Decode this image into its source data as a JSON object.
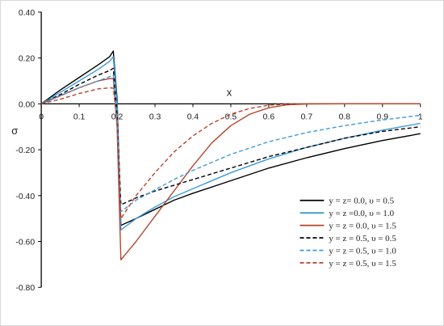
{
  "chart_data": {
    "type": "line",
    "xlabel": "x",
    "ylabel": "σ",
    "xlim": [
      0,
      1
    ],
    "ylim": [
      -0.8,
      0.4
    ],
    "x_ticks": [
      {
        "v": 0,
        "label": "0"
      },
      {
        "v": 0.1,
        "label": "0.1"
      },
      {
        "v": 0.2,
        "label": "0.2"
      },
      {
        "v": 0.3,
        "label": "0.3"
      },
      {
        "v": 0.4,
        "label": "0.4"
      },
      {
        "v": 0.5,
        "label": "0.5"
      },
      {
        "v": 0.6,
        "label": "0.6"
      },
      {
        "v": 0.7,
        "label": "0.7"
      },
      {
        "v": 0.8,
        "label": "0.8"
      },
      {
        "v": 0.9,
        "label": "0.9"
      },
      {
        "v": 1,
        "label": "1"
      }
    ],
    "y_ticks": [
      {
        "v": 0.4,
        "label": "0.40"
      },
      {
        "v": 0.2,
        "label": "0.20"
      },
      {
        "v": 0,
        "label": "0.00"
      },
      {
        "v": -0.2,
        "label": "-0.20"
      },
      {
        "v": -0.4,
        "label": "-0.40"
      },
      {
        "v": -0.6,
        "label": "-0.60"
      },
      {
        "v": -0.8,
        "label": "-0.80"
      }
    ],
    "legend_position": "lower-right",
    "grid": false,
    "series": [
      {
        "name": "y = z= 0.0,  υ = 0.5",
        "color": "#000000",
        "dash": "solid",
        "points": [
          [
            0,
            0
          ],
          [
            0.05,
            0.06
          ],
          [
            0.1,
            0.115
          ],
          [
            0.15,
            0.17
          ],
          [
            0.18,
            0.205
          ],
          [
            0.19,
            0.23
          ],
          [
            0.2,
            0.02
          ],
          [
            0.21,
            -0.53
          ],
          [
            0.25,
            -0.5
          ],
          [
            0.3,
            -0.46
          ],
          [
            0.35,
            -0.42
          ],
          [
            0.4,
            -0.39
          ],
          [
            0.5,
            -0.335
          ],
          [
            0.6,
            -0.28
          ],
          [
            0.7,
            -0.235
          ],
          [
            0.8,
            -0.195
          ],
          [
            0.9,
            -0.16
          ],
          [
            1,
            -0.13
          ]
        ]
      },
      {
        "name": "y = z =0.0,  υ = 1.0",
        "color": "#3d9ad9",
        "dash": "solid",
        "points": [
          [
            0,
            0
          ],
          [
            0.05,
            0.05
          ],
          [
            0.1,
            0.1
          ],
          [
            0.15,
            0.15
          ],
          [
            0.18,
            0.185
          ],
          [
            0.19,
            0.205
          ],
          [
            0.2,
            0.0
          ],
          [
            0.21,
            -0.55
          ],
          [
            0.25,
            -0.5
          ],
          [
            0.3,
            -0.45
          ],
          [
            0.35,
            -0.405
          ],
          [
            0.4,
            -0.37
          ],
          [
            0.5,
            -0.3
          ],
          [
            0.6,
            -0.24
          ],
          [
            0.7,
            -0.19
          ],
          [
            0.8,
            -0.15
          ],
          [
            0.9,
            -0.115
          ],
          [
            1,
            -0.085
          ]
        ]
      },
      {
        "name": "y = z = 0.0,  υ = 1.5",
        "color": "#b5452b",
        "dash": "solid",
        "points": [
          [
            0,
            0
          ],
          [
            0.05,
            0.035
          ],
          [
            0.1,
            0.07
          ],
          [
            0.15,
            0.1
          ],
          [
            0.18,
            0.11
          ],
          [
            0.19,
            0.11
          ],
          [
            0.2,
            -0.1
          ],
          [
            0.21,
            -0.68
          ],
          [
            0.23,
            -0.64
          ],
          [
            0.25,
            -0.6
          ],
          [
            0.3,
            -0.49
          ],
          [
            0.35,
            -0.38
          ],
          [
            0.4,
            -0.27
          ],
          [
            0.45,
            -0.17
          ],
          [
            0.5,
            -0.095
          ],
          [
            0.55,
            -0.045
          ],
          [
            0.6,
            -0.017
          ],
          [
            0.65,
            -0.004
          ],
          [
            0.7,
            -0.0005
          ],
          [
            0.8,
            0
          ],
          [
            1,
            0
          ]
        ]
      },
      {
        "name": "y = z = 0.5,  υ = 0.5",
        "color": "#000000",
        "dash": "dashed",
        "points": [
          [
            0,
            0
          ],
          [
            0.05,
            0.04
          ],
          [
            0.1,
            0.085
          ],
          [
            0.15,
            0.125
          ],
          [
            0.18,
            0.145
          ],
          [
            0.19,
            0.155
          ],
          [
            0.2,
            -0.05
          ],
          [
            0.21,
            -0.44
          ],
          [
            0.25,
            -0.41
          ],
          [
            0.3,
            -0.38
          ],
          [
            0.35,
            -0.355
          ],
          [
            0.4,
            -0.33
          ],
          [
            0.5,
            -0.28
          ],
          [
            0.6,
            -0.23
          ],
          [
            0.7,
            -0.19
          ],
          [
            0.8,
            -0.15
          ],
          [
            0.9,
            -0.12
          ],
          [
            1,
            -0.1
          ]
        ]
      },
      {
        "name": "y = z = 0.5,  υ = 1.0",
        "color": "#3d9ad9",
        "dash": "dashed",
        "points": [
          [
            0,
            0
          ],
          [
            0.05,
            0.035
          ],
          [
            0.1,
            0.07
          ],
          [
            0.15,
            0.1
          ],
          [
            0.18,
            0.118
          ],
          [
            0.19,
            0.125
          ],
          [
            0.2,
            -0.07
          ],
          [
            0.21,
            -0.47
          ],
          [
            0.25,
            -0.42
          ],
          [
            0.3,
            -0.375
          ],
          [
            0.35,
            -0.33
          ],
          [
            0.4,
            -0.29
          ],
          [
            0.5,
            -0.22
          ],
          [
            0.6,
            -0.165
          ],
          [
            0.7,
            -0.125
          ],
          [
            0.8,
            -0.095
          ],
          [
            0.9,
            -0.07
          ],
          [
            1,
            -0.05
          ]
        ]
      },
      {
        "name": "y = z = 0.5,  υ = 1.5",
        "color": "#b5452b",
        "dash": "dashed",
        "points": [
          [
            0,
            0
          ],
          [
            0.05,
            0.02
          ],
          [
            0.1,
            0.045
          ],
          [
            0.15,
            0.065
          ],
          [
            0.18,
            0.07
          ],
          [
            0.19,
            0.068
          ],
          [
            0.2,
            -0.08
          ],
          [
            0.21,
            -0.5
          ],
          [
            0.25,
            -0.4
          ],
          [
            0.3,
            -0.3
          ],
          [
            0.35,
            -0.21
          ],
          [
            0.4,
            -0.14
          ],
          [
            0.45,
            -0.085
          ],
          [
            0.5,
            -0.045
          ],
          [
            0.55,
            -0.02
          ],
          [
            0.6,
            -0.006
          ],
          [
            0.65,
            -0.001
          ],
          [
            0.7,
            0
          ],
          [
            1,
            0
          ]
        ]
      }
    ]
  }
}
